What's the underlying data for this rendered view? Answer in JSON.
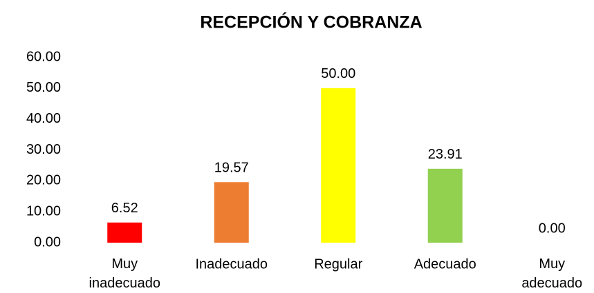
{
  "chart_data": {
    "type": "bar",
    "title": "RECEPCIÓN Y COBRANZA",
    "categories": [
      "Muy inadecuado",
      "Inadecuado",
      "Regular",
      "Adecuado",
      "Muy adecuado"
    ],
    "values": [
      6.52,
      19.57,
      50,
      23.91,
      0
    ],
    "value_labels": [
      "6.52",
      "19.57",
      "50.00",
      "23.91",
      "0.00"
    ],
    "colors": [
      "#ff0000",
      "#ed7d31",
      "#ffff00",
      "#92d050",
      "#00b050"
    ],
    "ylim": [
      0,
      60
    ],
    "yticks": [
      {
        "value": 0,
        "label": "0.00"
      },
      {
        "value": 10,
        "label": "10.00"
      },
      {
        "value": 20,
        "label": "20.00"
      },
      {
        "value": 30,
        "label": "30.00"
      },
      {
        "value": 40,
        "label": "40.00"
      },
      {
        "value": 50,
        "label": "50.00"
      },
      {
        "value": 60,
        "label": "60.00"
      }
    ],
    "grid": false
  }
}
